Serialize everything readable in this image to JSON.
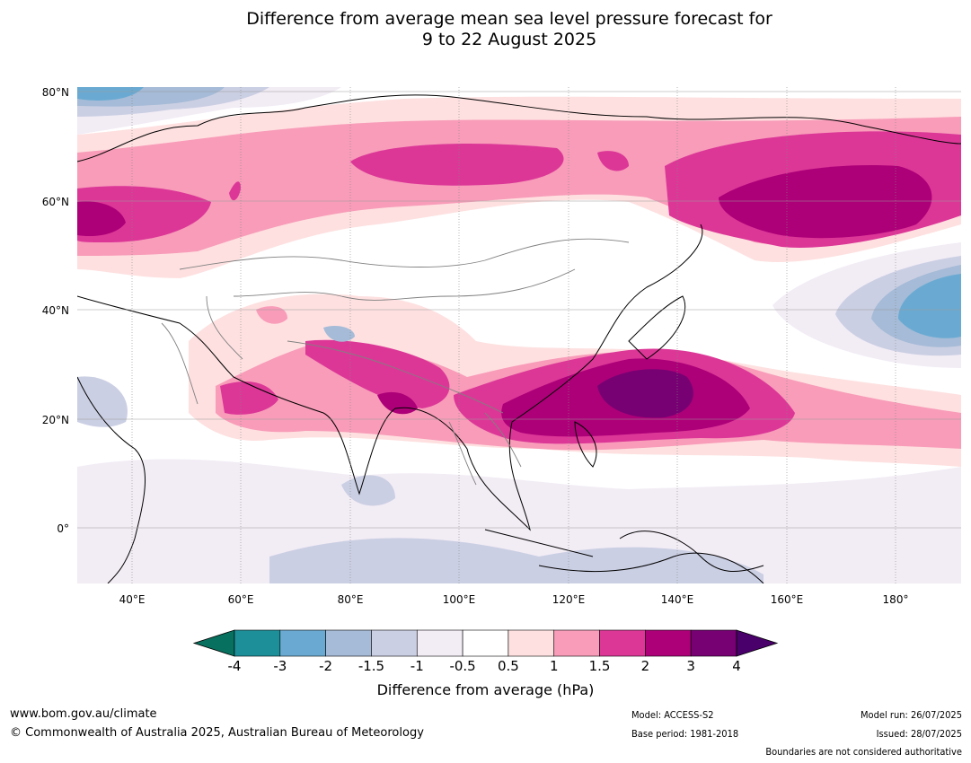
{
  "title_line1": "Difference from average mean sea level pressure forecast for",
  "title_line2": "9 to 22 August 2025",
  "axes": {
    "lat_ticks": [
      "80°N",
      "60°N",
      "40°N",
      "20°N",
      "0°"
    ],
    "lon_ticks": [
      "40°E",
      "60°E",
      "80°E",
      "100°E",
      "120°E",
      "140°E",
      "160°E",
      "180°"
    ]
  },
  "colorbar": {
    "label": "Difference from average (hPa)",
    "ticks": [
      "-4",
      "-3",
      "-2",
      "-1.5",
      "-1",
      "-0.5",
      "0.5",
      "1",
      "1.5",
      "2",
      "3",
      "4"
    ],
    "colors": {
      "under": "#08705e",
      "bins": [
        "#1c8f98",
        "#6aaad2",
        "#a5bbd7",
        "#cbcfe3",
        "#f2ecf5",
        "#ffffff",
        "#fee0e0",
        "#f89cb9",
        "#dc3797",
        "#ad0078",
        "#770073"
      ],
      "over": "#49006a"
    }
  },
  "footer": {
    "website": "www.bom.gov.au/climate",
    "copyright": "© Commonwealth of Australia 2025, Australian Bureau of Meteorology",
    "model": "Model: ACCESS-S2",
    "base_period": "Base period: 1981-2018",
    "model_run": "Model run: 26/07/2025",
    "issued": "Issued: 28/07/2025",
    "disclaimer": "Boundaries are not considered authoritative"
  }
}
